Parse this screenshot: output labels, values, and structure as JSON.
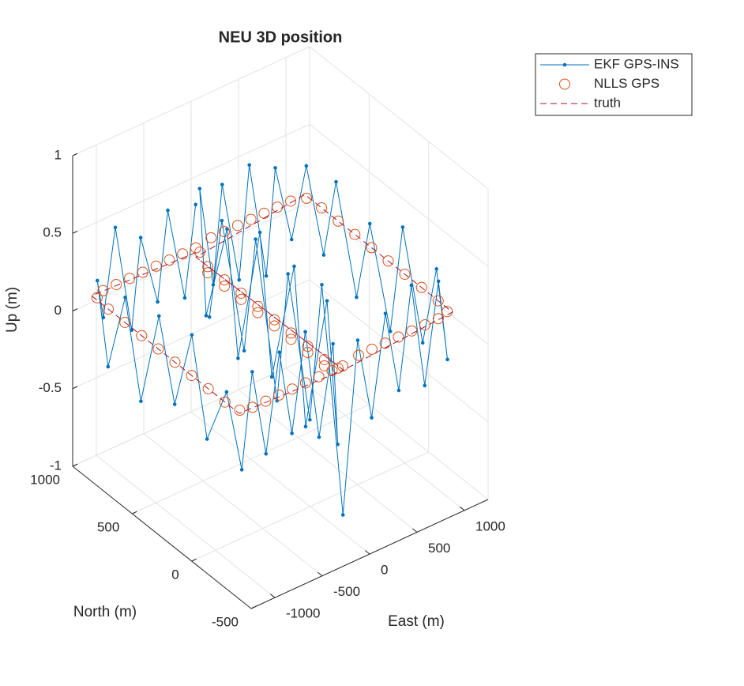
{
  "chart_data": {
    "type": "line3d",
    "title": "NEU 3D position",
    "xlabel": "East (m)",
    "ylabel": "North (m)",
    "zlabel": "Up (m)",
    "xlim": [
      -1250,
      1250
    ],
    "ylim": [
      -500,
      1000
    ],
    "zlim": [
      -1,
      1
    ],
    "xticks": [
      -1000,
      -500,
      0,
      500,
      1000
    ],
    "yticks": [
      -500,
      0,
      500,
      1000
    ],
    "zticks": [
      -1,
      -0.5,
      0,
      0.5,
      1
    ],
    "grid": true,
    "legend_location": "northeastoutside",
    "series": [
      {
        "name": "EKF GPS-INS",
        "color": "#0072BD",
        "line": "solid",
        "marker": "dot",
        "x": [
          10,
          -130,
          -290,
          -410,
          -570,
          -690,
          -850,
          -970,
          -1090,
          -1090,
          -1110,
          -1095,
          -1105,
          -1090,
          -1110,
          -1100,
          -1095,
          -1060,
          -950,
          -830,
          -670,
          -550,
          -390,
          -270,
          -110,
          -10,
          15,
          -10,
          20,
          -15,
          10,
          -20,
          15,
          -5,
          40,
          170,
          290,
          450,
          570,
          730,
          850,
          1010,
          1140,
          1160,
          1140,
          1155,
          1145,
          1160,
          1140,
          1150,
          1145,
          1110,
          990,
          870,
          710,
          590,
          430,
          310,
          150,
          20,
          -15,
          10,
          -20,
          15,
          -10,
          20,
          -15,
          5
        ],
        "y": [
          970,
          950,
          965,
          955,
          970,
          950,
          960,
          965,
          920,
          830,
          670,
          550,
          390,
          270,
          110,
          -10,
          -170,
          -270,
          -270,
          -290,
          -275,
          -285,
          -270,
          -290,
          -280,
          -240,
          -130,
          30,
          150,
          310,
          430,
          590,
          710,
          870,
          960,
          950,
          970,
          955,
          965,
          950,
          970,
          960,
          940,
          810,
          690,
          530,
          410,
          250,
          130,
          -30,
          -150,
          -270,
          -290,
          -270,
          -285,
          -275,
          -290,
          -270,
          -280,
          -260,
          -110,
          10,
          170,
          290,
          450,
          570,
          730,
          850
        ],
        "z": [
          0.35,
          -0.2,
          0.4,
          -0.15,
          0.3,
          -0.25,
          0.45,
          -0.1,
          0.2,
          -0.3,
          0.25,
          -0.35,
          0.3,
          -0.2,
          0.35,
          -0.25,
          0.15,
          -0.3,
          0.3,
          -0.25,
          0.35,
          -0.2,
          0.4,
          -0.3,
          0.25,
          -0.45,
          0.4,
          -0.5,
          0.45,
          -0.35,
          0.5,
          -0.4,
          0.35,
          -0.3,
          0.45,
          -0.2,
          0.4,
          -0.25,
          0.45,
          -0.3,
          0.35,
          -0.15,
          0.3,
          -0.2,
          0.35,
          -0.3,
          0.25,
          -0.35,
          0.4,
          -0.25,
          0.3,
          -0.2,
          0.35,
          -0.3,
          0.4,
          -0.25,
          0.3,
          -0.35,
          0.2,
          -0.9,
          0.5,
          -0.45,
          0.4,
          -0.5,
          0.45,
          -0.35,
          0.4,
          -0.3
        ]
      },
      {
        "name": "NLLS GPS",
        "color": "#D95319",
        "line": "none",
        "marker": "circle",
        "x": [
          0,
          -140,
          -280,
          -420,
          -560,
          -700,
          -840,
          -980,
          -1080,
          -1100,
          -1100,
          -1100,
          -1100,
          -1100,
          -1100,
          -1100,
          -1100,
          -1070,
          -960,
          -820,
          -680,
          -540,
          -400,
          -260,
          -120,
          -20,
          0,
          0,
          0,
          0,
          0,
          0,
          0,
          0,
          30,
          160,
          300,
          440,
          580,
          720,
          860,
          1000,
          1130,
          1150,
          1150,
          1150,
          1150,
          1150,
          1150,
          1150,
          1150,
          1120,
          1000,
          860,
          720,
          580,
          440,
          300,
          160,
          30,
          0,
          0,
          0,
          0,
          0,
          0,
          0,
          0
        ],
        "y": [
          960,
          960,
          960,
          960,
          960,
          960,
          960,
          960,
          930,
          820,
          680,
          540,
          400,
          260,
          120,
          -20,
          -160,
          -260,
          -280,
          -280,
          -280,
          -280,
          -280,
          -280,
          -280,
          -250,
          -120,
          20,
          160,
          300,
          440,
          580,
          720,
          860,
          950,
          960,
          960,
          960,
          960,
          960,
          960,
          960,
          930,
          820,
          680,
          540,
          400,
          260,
          120,
          -20,
          -160,
          -260,
          -280,
          -280,
          -280,
          -280,
          -280,
          -280,
          -280,
          -250,
          -120,
          20,
          160,
          300,
          440,
          580,
          720,
          860
        ],
        "z": [
          0.08,
          0.08,
          0.08,
          0.08,
          0.08,
          0.08,
          0.08,
          0.08,
          0.08,
          0.08,
          0.08,
          0.08,
          0.08,
          0.08,
          0.08,
          0.08,
          0.08,
          0.08,
          0.08,
          0.08,
          0.08,
          0.08,
          0.08,
          0.08,
          0.08,
          0.05,
          -0.02,
          -0.02,
          -0.02,
          -0.02,
          -0.02,
          -0.02,
          -0.02,
          -0.02,
          0.05,
          0.1,
          0.1,
          0.1,
          0.1,
          0.1,
          0.1,
          0.1,
          0.1,
          0.1,
          0.1,
          0.1,
          0.1,
          0.1,
          0.1,
          0.1,
          0.1,
          0.1,
          0.1,
          0.1,
          0.1,
          0.1,
          0.1,
          0.1,
          0.1,
          0.05,
          0.02,
          0.02,
          0.02,
          0.02,
          0.02,
          0.02,
          0.02,
          0.02
        ]
      },
      {
        "name": "truth",
        "color": "#A2142F",
        "line": "dashed",
        "marker": "none",
        "x": [
          0,
          -1100,
          -1100,
          0,
          0,
          1150,
          1150,
          0,
          0
        ],
        "y": [
          960,
          960,
          -280,
          -280,
          960,
          960,
          -280,
          -280,
          960
        ],
        "z": [
          0.05,
          0.08,
          0.08,
          0.05,
          0.02,
          0.1,
          0.1,
          0.05,
          0.02
        ]
      }
    ]
  }
}
